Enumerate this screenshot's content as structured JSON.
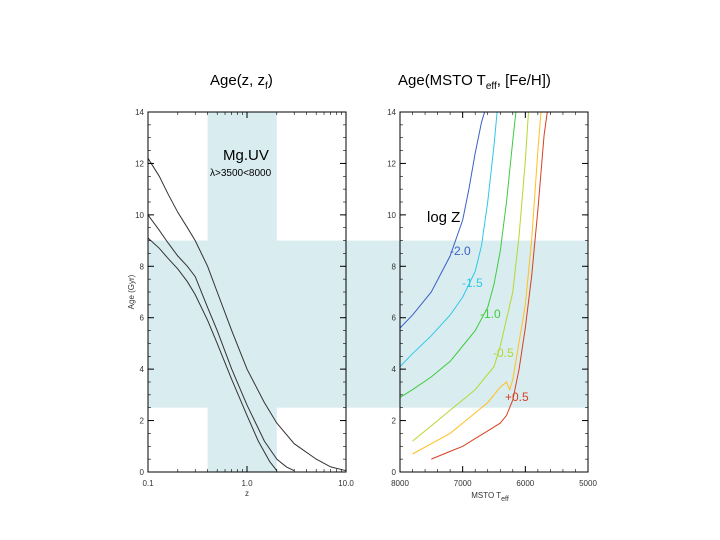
{
  "titles": {
    "left": {
      "text": "Age(z, z",
      "sub": "f",
      "tail": ")"
    },
    "right": {
      "text": "Age(MSTO T",
      "sub": "eff",
      "tail": ", [Fe/H])"
    }
  },
  "colors": {
    "band": "#d9ecef",
    "frame": "#000000",
    "tick_text": "#333333"
  },
  "chart_data": [
    {
      "type": "line",
      "title": "Age(z, zf)",
      "xlabel": "z",
      "ylabel": "Age (Gyr)",
      "x_scale": "log",
      "xlim": [
        0.1,
        10.0
      ],
      "ylim": [
        0,
        14
      ],
      "xticks": [
        {
          "v": 0.1,
          "label": "0.1"
        },
        {
          "v": 1.0,
          "label": "1.0"
        },
        {
          "v": 10.0,
          "label": "10.0"
        }
      ],
      "yticks": [
        0,
        2,
        4,
        6,
        8,
        10,
        12,
        14
      ],
      "grid": false,
      "band_annotation": {
        "label": "Mg.UV",
        "sublabel": "λ>3500<8000",
        "x_range": [
          0.4,
          2.0
        ]
      },
      "horizontal_band": {
        "y_range": [
          2.5,
          9.0
        ]
      },
      "series": [
        {
          "color": "#333333",
          "x": [
            0.1,
            0.13,
            0.16,
            0.2,
            0.25,
            0.3,
            0.4,
            0.5,
            0.7,
            1.0,
            1.5,
            2.0,
            3.0,
            5.0,
            7.0,
            10.0
          ],
          "y": [
            12.2,
            11.5,
            10.8,
            10.1,
            9.5,
            9.0,
            8.0,
            7.0,
            5.5,
            4.0,
            2.7,
            1.9,
            1.1,
            0.5,
            0.2,
            0.05
          ]
        },
        {
          "color": "#333333",
          "x": [
            0.1,
            0.13,
            0.16,
            0.2,
            0.25,
            0.3,
            0.4,
            0.5,
            0.7,
            1.0,
            1.5,
            2.0,
            2.5,
            3.0
          ],
          "y": [
            10.0,
            9.4,
            8.9,
            8.4,
            8.0,
            7.6,
            6.4,
            5.5,
            4.0,
            2.6,
            1.2,
            0.5,
            0.2,
            0.05
          ]
        },
        {
          "color": "#333333",
          "x": [
            0.1,
            0.13,
            0.16,
            0.2,
            0.25,
            0.3,
            0.4,
            0.5,
            0.7,
            1.0,
            1.3,
            1.7,
            2.0
          ],
          "y": [
            9.1,
            8.7,
            8.3,
            7.9,
            7.4,
            6.9,
            5.9,
            5.0,
            3.6,
            2.2,
            1.2,
            0.4,
            0.05
          ]
        }
      ]
    },
    {
      "type": "line",
      "title": "Age(MSTO Teff, [Fe/H])",
      "xlabel": "MSTO T",
      "xlabel_sub": "eff",
      "ylabel": "",
      "xlim": [
        8000,
        5000
      ],
      "ylim": [
        0,
        14
      ],
      "xticks": [
        {
          "v": 8000,
          "label": "8000"
        },
        {
          "v": 7000,
          "label": "7000"
        },
        {
          "v": 6000,
          "label": "6000"
        },
        {
          "v": 5000,
          "label": "5000"
        }
      ],
      "yticks": [
        0,
        2,
        4,
        6,
        8,
        10,
        12,
        14
      ],
      "grid": false,
      "horizontal_band": {
        "y_range": [
          2.5,
          9.0
        ]
      },
      "legend_title": "log Z",
      "series": [
        {
          "name": "-2.0",
          "color": "#3a5fc8",
          "x": [
            8000,
            7800,
            7500,
            7200,
            7000,
            6900,
            6800,
            6700,
            6650
          ],
          "y": [
            5.6,
            6.1,
            7.0,
            8.4,
            9.8,
            11.0,
            12.4,
            13.6,
            14.0
          ]
        },
        {
          "name": "-1.5",
          "color": "#2ec8e8",
          "x": [
            8000,
            7800,
            7500,
            7200,
            7000,
            6800,
            6700,
            6600,
            6500,
            6450
          ],
          "y": [
            4.1,
            4.6,
            5.3,
            6.1,
            6.8,
            7.8,
            8.8,
            10.5,
            12.7,
            14.0
          ]
        },
        {
          "name": "-1.0",
          "color": "#3ecc3e",
          "x": [
            8000,
            7800,
            7500,
            7200,
            7000,
            6800,
            6600,
            6500,
            6400,
            6300,
            6200,
            6150
          ],
          "y": [
            2.9,
            3.2,
            3.7,
            4.3,
            4.9,
            5.5,
            6.4,
            7.3,
            8.6,
            10.5,
            12.9,
            14.0
          ]
        },
        {
          "name": "-0.5",
          "color": "#b4d830",
          "x": [
            7800,
            7600,
            7400,
            7200,
            7000,
            6800,
            6500,
            6400,
            6200,
            6100,
            6000,
            5950
          ],
          "y": [
            1.2,
            1.6,
            2.0,
            2.4,
            2.8,
            3.2,
            4.1,
            4.9,
            7.0,
            9.2,
            12.1,
            14.0
          ]
        },
        {
          "name": "-0.5",
          "color": "#ffc020",
          "x": [
            7800,
            7500,
            7200,
            7000,
            6800,
            6600,
            6400,
            6300,
            6250,
            6200,
            6000,
            5900,
            5800,
            5750
          ],
          "y": [
            0.7,
            1.1,
            1.5,
            1.9,
            2.3,
            2.7,
            3.3,
            3.5,
            3.2,
            3.6,
            6.5,
            9.0,
            12.5,
            14.0
          ]
        },
        {
          "name": "+0.5",
          "color": "#d84020",
          "x": [
            7500,
            7200,
            7000,
            6800,
            6600,
            6400,
            6300,
            6200,
            6100,
            6000,
            5900,
            5800,
            5700,
            5650
          ],
          "y": [
            0.5,
            0.8,
            1.0,
            1.3,
            1.6,
            1.9,
            2.2,
            2.8,
            4.0,
            5.6,
            7.6,
            10.2,
            13.1,
            14.0
          ]
        }
      ],
      "series_labels": [
        {
          "text": "-2.0",
          "color": "#3a5fc8"
        },
        {
          "text": "-1.5",
          "color": "#2ec8e8"
        },
        {
          "text": "-1.0",
          "color": "#3ecc3e"
        },
        {
          "text": "-0.5",
          "color": "#b4d830"
        },
        {
          "text": "+0.5",
          "color": "#d84020"
        }
      ]
    }
  ]
}
